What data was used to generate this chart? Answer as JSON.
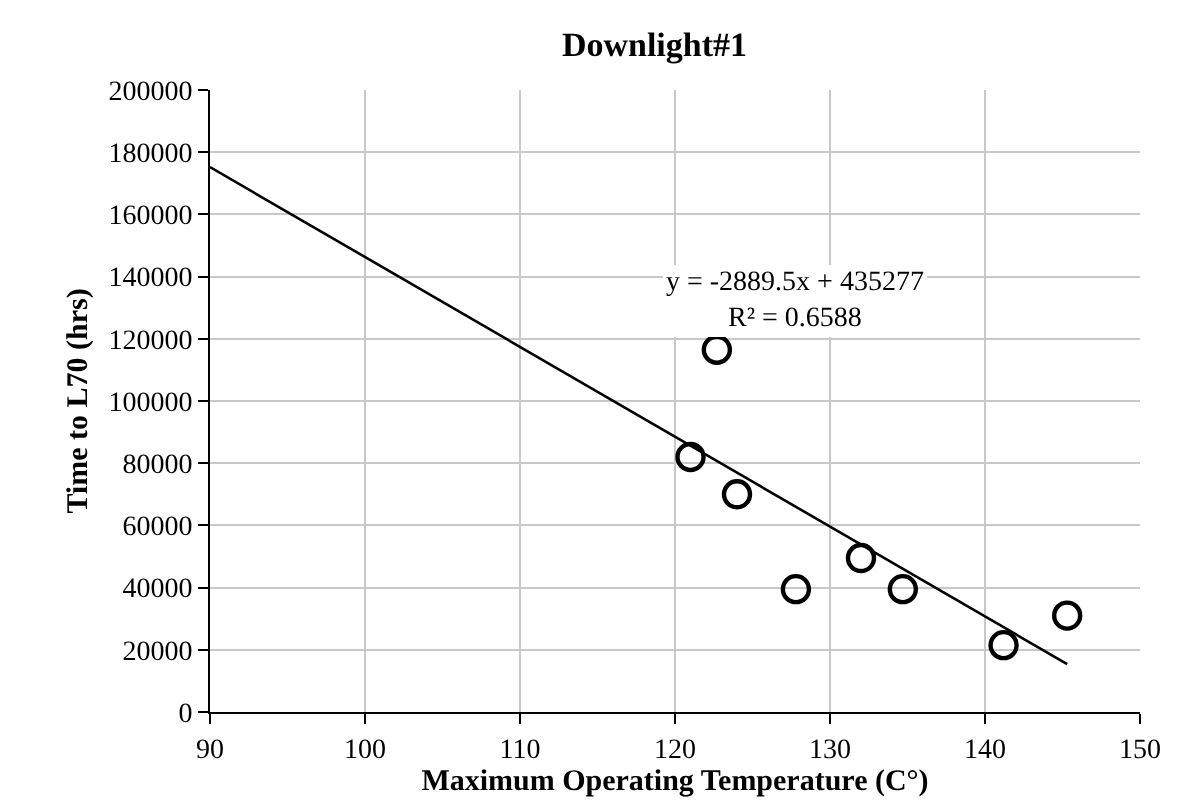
{
  "chart_data": {
    "type": "scatter",
    "title": "Downlight#1",
    "xlabel": "Maximum Operating Temperature (C°)",
    "ylabel": "Time to L70 (hrs)",
    "series": [
      {
        "color": "#000000",
        "marker": "circle",
        "x": [
          121,
          122.7,
          124,
          127.8,
          132,
          134.7,
          141.2,
          145.3
        ],
        "values": [
          82000,
          116500,
          70000,
          39500,
          49500,
          39500,
          21500,
          31000
        ]
      },
      {
        "type": "line",
        "color": "#000000",
        "marker": "none",
        "x": [
          90,
          145.3
        ],
        "values": [
          175200,
          15400
        ]
      }
    ],
    "annotations": [
      "y = -2889.5x + 435277",
      "R² = 0.6588"
    ],
    "xlim": [
      90,
      150
    ],
    "xticks": [
      90,
      100,
      110,
      120,
      130,
      140,
      150
    ],
    "ylim": [
      0,
      200000
    ],
    "yticks": [
      0,
      20000,
      40000,
      60000,
      80000,
      100000,
      120000,
      140000,
      160000,
      180000,
      200000
    ],
    "grid": true,
    "legend": false
  }
}
